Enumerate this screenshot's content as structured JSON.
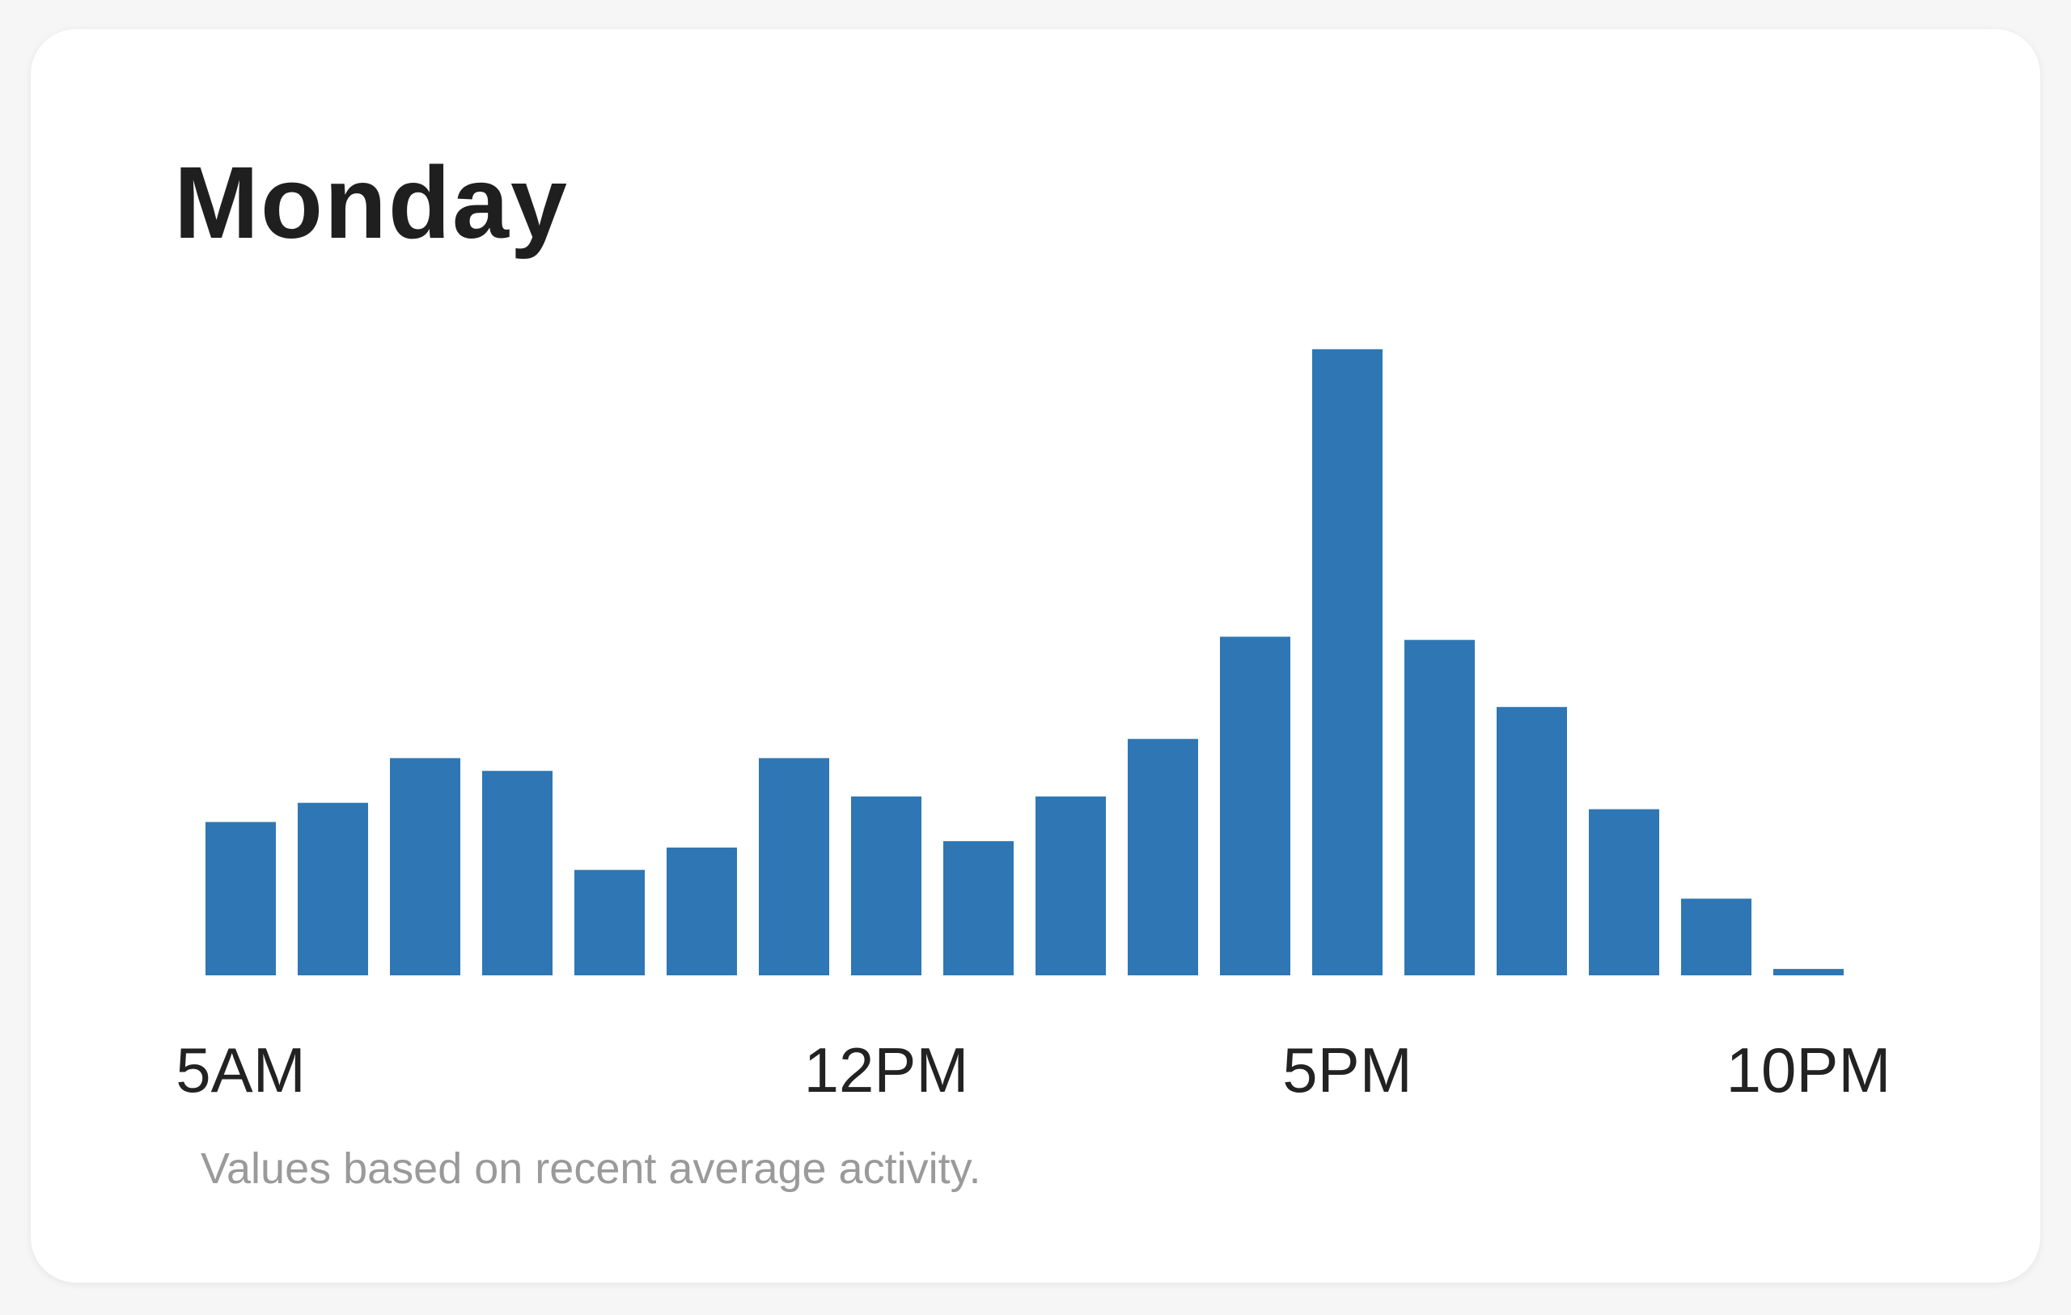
{
  "card": {
    "title": "Monday",
    "note": "Values based on recent average activity."
  },
  "colors": {
    "bar": "#2e77b4",
    "background": "#ffffff"
  },
  "chart_data": {
    "type": "bar",
    "categories": [
      "5AM",
      "6AM",
      "7AM",
      "8AM",
      "9AM",
      "10AM",
      "11AM",
      "12PM",
      "1PM",
      "2PM",
      "3PM",
      "4PM",
      "5PM",
      "6PM",
      "7PM",
      "8PM",
      "9PM",
      "10PM"
    ],
    "values": [
      24,
      27,
      34,
      32,
      16.5,
      20,
      34,
      28,
      21,
      28,
      37,
      53,
      98,
      52.5,
      42,
      26,
      12,
      1
    ],
    "tick_labels": [
      "5AM",
      "12PM",
      "5PM",
      "10PM"
    ],
    "ylim": [
      0,
      100
    ],
    "grid": false
  }
}
